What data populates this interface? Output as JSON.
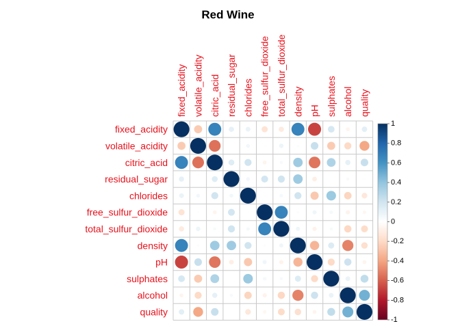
{
  "chart_data": {
    "type": "heatmap",
    "subtype": "correlation-circle-matrix",
    "title": "Red Wine",
    "variables": [
      "fixed_acidity",
      "volatile_acidity",
      "citric_acid",
      "residual_sugar",
      "chlorides",
      "free_sulfur_dioxide",
      "total_sulfur_dioxide",
      "density",
      "pH",
      "sulphates",
      "alcohol",
      "quality"
    ],
    "matrix": [
      [
        1.0,
        -0.26,
        0.67,
        0.11,
        0.09,
        -0.15,
        -0.11,
        0.67,
        -0.68,
        0.18,
        -0.06,
        0.12
      ],
      [
        -0.26,
        1.0,
        -0.55,
        0.0,
        0.06,
        -0.01,
        0.08,
        0.02,
        0.23,
        -0.26,
        -0.2,
        -0.39
      ],
      [
        0.67,
        -0.55,
        1.0,
        0.14,
        0.2,
        -0.06,
        0.04,
        0.36,
        -0.54,
        0.31,
        0.11,
        0.23
      ],
      [
        0.11,
        0.0,
        0.14,
        1.0,
        0.06,
        0.19,
        0.2,
        0.36,
        -0.09,
        0.01,
        0.04,
        0.01
      ],
      [
        0.09,
        0.06,
        0.2,
        0.06,
        1.0,
        0.01,
        0.05,
        0.2,
        -0.27,
        0.37,
        -0.22,
        -0.13
      ],
      [
        -0.15,
        -0.01,
        -0.06,
        0.19,
        0.01,
        1.0,
        0.67,
        -0.02,
        0.07,
        0.05,
        -0.07,
        -0.05
      ],
      [
        -0.11,
        0.08,
        0.04,
        0.2,
        0.05,
        0.67,
        1.0,
        0.07,
        -0.07,
        0.04,
        -0.21,
        -0.19
      ],
      [
        0.67,
        0.02,
        0.36,
        0.36,
        0.2,
        -0.02,
        0.07,
        1.0,
        -0.34,
        0.15,
        -0.5,
        -0.17
      ],
      [
        -0.68,
        0.23,
        -0.54,
        -0.09,
        -0.27,
        0.07,
        -0.07,
        -0.34,
        1.0,
        -0.2,
        0.21,
        -0.06
      ],
      [
        0.18,
        -0.26,
        0.31,
        0.01,
        0.37,
        0.05,
        0.04,
        0.15,
        -0.2,
        1.0,
        0.09,
        0.25
      ],
      [
        -0.06,
        -0.2,
        0.11,
        0.04,
        -0.22,
        -0.07,
        -0.21,
        -0.5,
        0.21,
        0.09,
        1.0,
        0.48
      ],
      [
        0.12,
        -0.39,
        0.23,
        0.01,
        -0.13,
        -0.05,
        -0.19,
        -0.17,
        -0.06,
        0.25,
        0.48,
        1.0
      ]
    ],
    "color_scale": {
      "min": -1,
      "max": 1,
      "ticks": [
        "1",
        "0.8",
        "0.6",
        "0.4",
        "0.2",
        "0",
        "-0.2",
        "-0.4",
        "-0.6",
        "-0.8",
        "-1"
      ],
      "stops": [
        "#67001F",
        "#B2182B",
        "#D6604D",
        "#F4A582",
        "#FDDBC7",
        "#FFFFFF",
        "#D1E5F0",
        "#92C5DE",
        "#4393C3",
        "#2166AC",
        "#053061"
      ]
    },
    "grid": true,
    "label_color": "#E8121C",
    "legend_position": "right"
  }
}
